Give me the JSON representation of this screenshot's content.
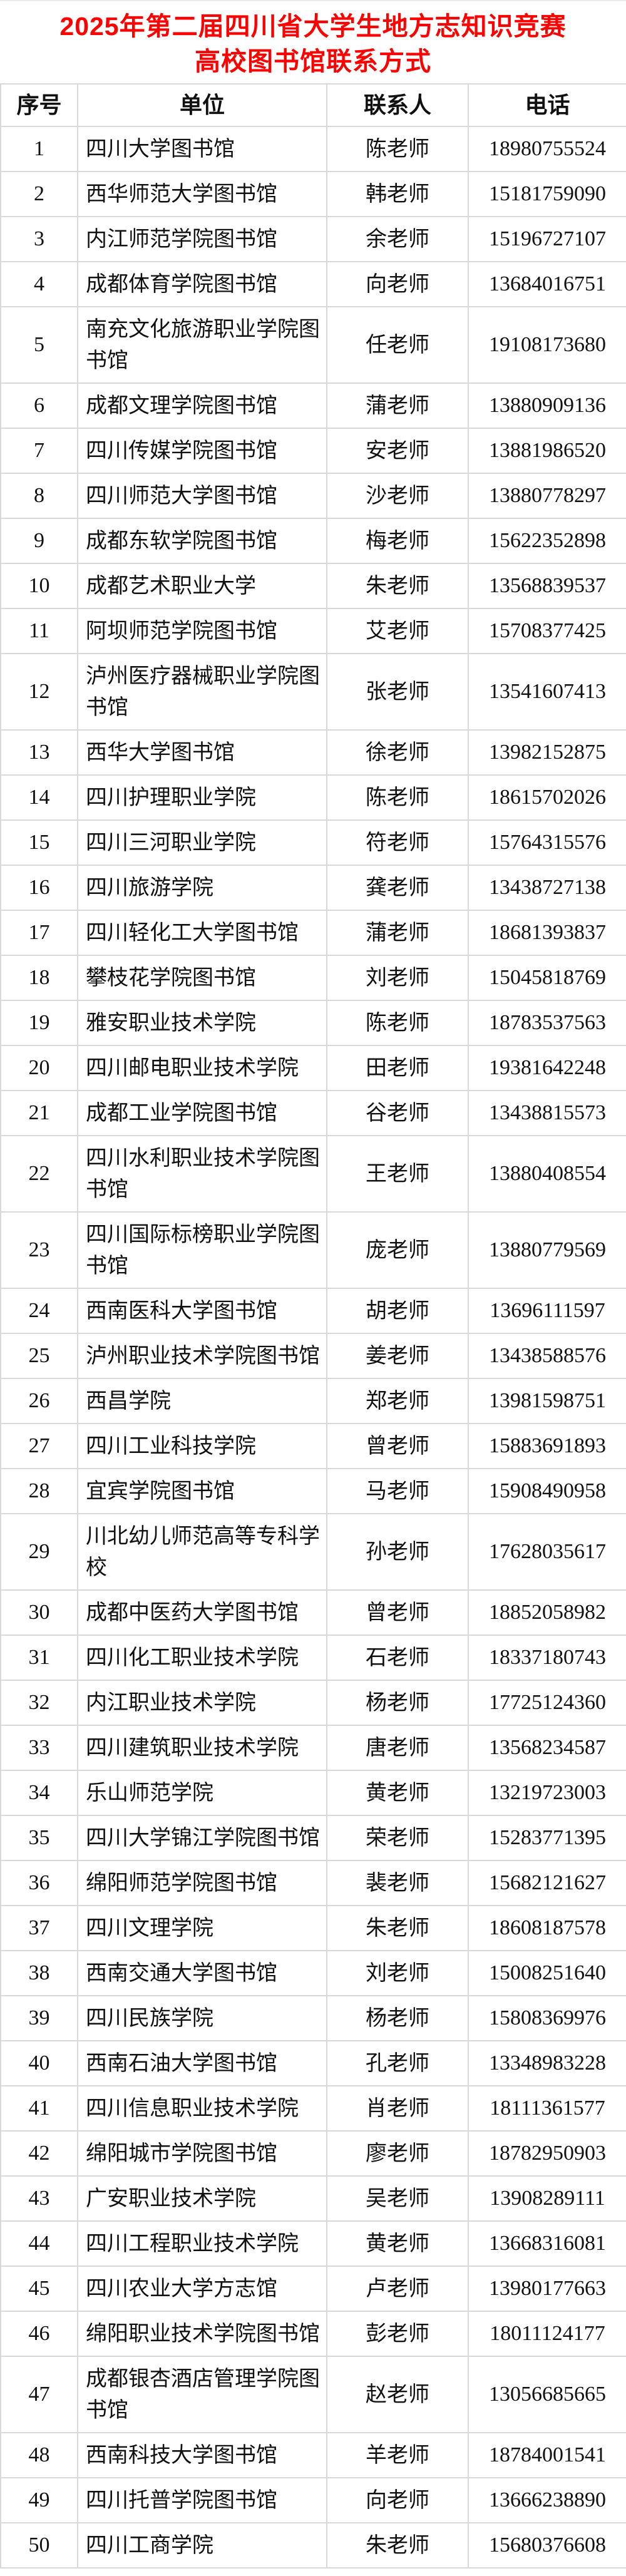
{
  "title": {
    "line1": "2025年第二届四川省大学生地方志知识竞赛",
    "line2": "高校图书馆联系方式"
  },
  "colors": {
    "title_red": "#ff0000",
    "border_gray": "#d9d9d9",
    "text": "#111111",
    "background": "#ffffff"
  },
  "table": {
    "columns": [
      "序号",
      "单位",
      "联系人",
      "电话"
    ],
    "rows": [
      {
        "no": "1",
        "unit": "四川大学图书馆",
        "contact": "陈老师",
        "phone": "18980755524"
      },
      {
        "no": "2",
        "unit": "西华师范大学图书馆",
        "contact": "韩老师",
        "phone": "15181759090"
      },
      {
        "no": "3",
        "unit": "内江师范学院图书馆",
        "contact": "余老师",
        "phone": "15196727107"
      },
      {
        "no": "4",
        "unit": "成都体育学院图书馆",
        "contact": "向老师",
        "phone": "13684016751"
      },
      {
        "no": "5",
        "unit": "南充文化旅游职业学院图\n书馆",
        "contact": "任老师",
        "phone": "19108173680"
      },
      {
        "no": "6",
        "unit": "成都文理学院图书馆",
        "contact": "蒲老师",
        "phone": "13880909136"
      },
      {
        "no": "7",
        "unit": "四川传媒学院图书馆",
        "contact": "安老师",
        "phone": "13881986520"
      },
      {
        "no": "8",
        "unit": "四川师范大学图书馆",
        "contact": "沙老师",
        "phone": "13880778297"
      },
      {
        "no": "9",
        "unit": "成都东软学院图书馆",
        "contact": "梅老师",
        "phone": "15622352898"
      },
      {
        "no": "10",
        "unit": "成都艺术职业大学",
        "contact": "朱老师",
        "phone": "13568839537"
      },
      {
        "no": "11",
        "unit": "阿坝师范学院图书馆",
        "contact": "艾老师",
        "phone": "15708377425"
      },
      {
        "no": "12",
        "unit": "泸州医疗器械职业学院图\n书馆",
        "contact": "张老师",
        "phone": "13541607413"
      },
      {
        "no": "13",
        "unit": "西华大学图书馆",
        "contact": "徐老师",
        "phone": "13982152875"
      },
      {
        "no": "14",
        "unit": "四川护理职业学院",
        "contact": "陈老师",
        "phone": "18615702026"
      },
      {
        "no": "15",
        "unit": "四川三河职业学院",
        "contact": "符老师",
        "phone": "15764315576"
      },
      {
        "no": "16",
        "unit": "四川旅游学院",
        "contact": "龚老师",
        "phone": "13438727138"
      },
      {
        "no": "17",
        "unit": "四川轻化工大学图书馆",
        "contact": "蒲老师",
        "phone": "18681393837"
      },
      {
        "no": "18",
        "unit": "攀枝花学院图书馆",
        "contact": "刘老师",
        "phone": "15045818769"
      },
      {
        "no": "19",
        "unit": "雅安职业技术学院",
        "contact": "陈老师",
        "phone": "18783537563"
      },
      {
        "no": "20",
        "unit": "四川邮电职业技术学院",
        "contact": "田老师",
        "phone": "19381642248"
      },
      {
        "no": "21",
        "unit": "成都工业学院图书馆",
        "contact": "谷老师",
        "phone": "13438815573"
      },
      {
        "no": "22",
        "unit": "四川水利职业技术学院图\n书馆",
        "contact": "王老师",
        "phone": "13880408554"
      },
      {
        "no": "23",
        "unit": "四川国际标榜职业学院图\n书馆",
        "contact": "庞老师",
        "phone": "13880779569"
      },
      {
        "no": "24",
        "unit": "西南医科大学图书馆",
        "contact": "胡老师",
        "phone": "13696111597"
      },
      {
        "no": "25",
        "unit": "泸州职业技术学院图书馆",
        "contact": "姜老师",
        "phone": "13438588576"
      },
      {
        "no": "26",
        "unit": "西昌学院",
        "contact": "郑老师",
        "phone": "13981598751"
      },
      {
        "no": "27",
        "unit": "四川工业科技学院",
        "contact": "曾老师",
        "phone": "15883691893"
      },
      {
        "no": "28",
        "unit": "宜宾学院图书馆",
        "contact": "马老师",
        "phone": "15908490958"
      },
      {
        "no": "29",
        "unit": "川北幼儿师范高等专科学\n校",
        "contact": "孙老师",
        "phone": "17628035617"
      },
      {
        "no": "30",
        "unit": "成都中医药大学图书馆",
        "contact": "曾老师",
        "phone": "18852058982"
      },
      {
        "no": "31",
        "unit": "四川化工职业技术学院",
        "contact": "石老师",
        "phone": "18337180743"
      },
      {
        "no": "32",
        "unit": "内江职业技术学院",
        "contact": "杨老师",
        "phone": "17725124360"
      },
      {
        "no": "33",
        "unit": "四川建筑职业技术学院",
        "contact": "唐老师",
        "phone": "13568234587"
      },
      {
        "no": "34",
        "unit": "乐山师范学院",
        "contact": "黄老师",
        "phone": "13219723003"
      },
      {
        "no": "35",
        "unit": "四川大学锦江学院图书馆",
        "contact": "荣老师",
        "phone": "15283771395"
      },
      {
        "no": "36",
        "unit": "绵阳师范学院图书馆",
        "contact": "裴老师",
        "phone": "15682121627"
      },
      {
        "no": "37",
        "unit": "四川文理学院",
        "contact": "朱老师",
        "phone": "18608187578"
      },
      {
        "no": "38",
        "unit": "西南交通大学图书馆",
        "contact": "刘老师",
        "phone": "15008251640"
      },
      {
        "no": "39",
        "unit": "四川民族学院",
        "contact": "杨老师",
        "phone": "15808369976"
      },
      {
        "no": "40",
        "unit": "西南石油大学图书馆",
        "contact": "孔老师",
        "phone": "13348983228"
      },
      {
        "no": "41",
        "unit": "四川信息职业技术学院",
        "contact": "肖老师",
        "phone": "18111361577"
      },
      {
        "no": "42",
        "unit": "绵阳城市学院图书馆",
        "contact": "廖老师",
        "phone": "18782950903"
      },
      {
        "no": "43",
        "unit": "广安职业技术学院",
        "contact": "吴老师",
        "phone": "13908289111"
      },
      {
        "no": "44",
        "unit": "四川工程职业技术学院",
        "contact": "黄老师",
        "phone": "13668316081"
      },
      {
        "no": "45",
        "unit": "四川农业大学方志馆",
        "contact": "卢老师",
        "phone": "13980177663"
      },
      {
        "no": "46",
        "unit": "绵阳职业技术学院图书馆",
        "contact": "彭老师",
        "phone": "18011124177"
      },
      {
        "no": "47",
        "unit": "成都银杏酒店管理学院图\n书馆",
        "contact": "赵老师",
        "phone": "13056685665"
      },
      {
        "no": "48",
        "unit": "西南科技大学图书馆",
        "contact": "羊老师",
        "phone": "18784001541"
      },
      {
        "no": "49",
        "unit": "四川托普学院图书馆",
        "contact": "向老师",
        "phone": "13666238890"
      },
      {
        "no": "50",
        "unit": "四川工商学院",
        "contact": "朱老师",
        "phone": "15680376608"
      }
    ]
  }
}
